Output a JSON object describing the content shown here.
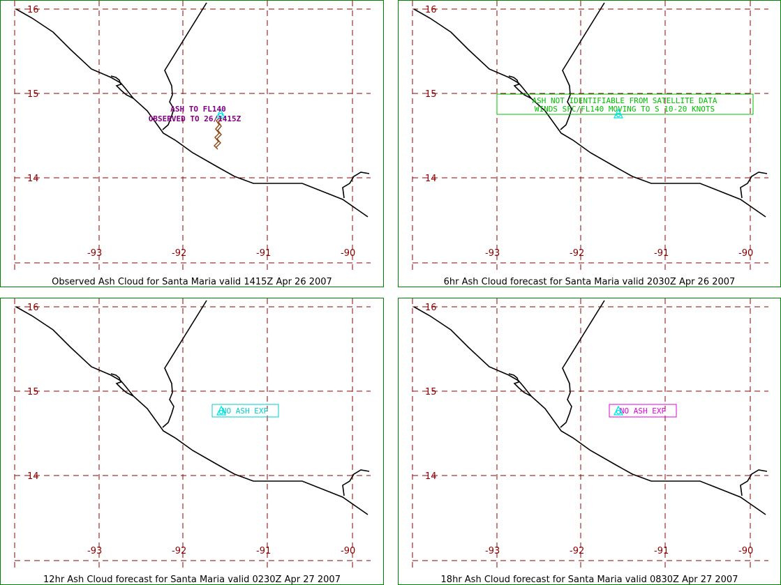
{
  "colors": {
    "frame": "#008000",
    "grid": "#8b0000",
    "coast": "#000000",
    "volcano_symbol": "#00e5e5",
    "obs_text": "#800080",
    "ash_outline": "#8b4513",
    "panel2_box": "#00c000",
    "panel3_box": "#00cccc",
    "panel4_box": "#e000e0"
  },
  "axes": {
    "lat_labels": [
      "16",
      "15",
      "14"
    ],
    "lon_labels": [
      "-93",
      "-92",
      "-91",
      "-90"
    ]
  },
  "panels": [
    {
      "caption": "Observed Ash Cloud for Santa  Maria valid 1415Z Apr 26 2007",
      "annotation_lines": [
        "ASH TO FL140",
        "OBSERVED TO 26/1415Z"
      ],
      "annotation_color": "#800080",
      "volcano_symbol": "volcano-icon"
    },
    {
      "caption": "6hr Ash Cloud forecast for Santa  Maria valid 2030Z Apr 26 2007",
      "annotation_lines": [
        "ASH NOT IDENTIFIABLE FROM SATELLITE DATA",
        "WINDS SFC/FL140 MOVING TO S 10-20 KNOTS"
      ],
      "annotation_color": "#00c000",
      "volcano_symbol": "volcano-icon"
    },
    {
      "caption": "12hr Ash Cloud forecast for Santa  Maria valid 0230Z Apr 27 2007",
      "annotation_lines": [
        "NO ASH EXP"
      ],
      "annotation_color": "#00cccc",
      "volcano_symbol": "volcano-icon"
    },
    {
      "caption": "18hr Ash Cloud forecast for Santa  Maria valid 0830Z Apr 27 2007",
      "annotation_lines": [
        "NO ASH EXP"
      ],
      "annotation_color": "#e000e0",
      "volcano_symbol": "volcano-icon"
    }
  ]
}
